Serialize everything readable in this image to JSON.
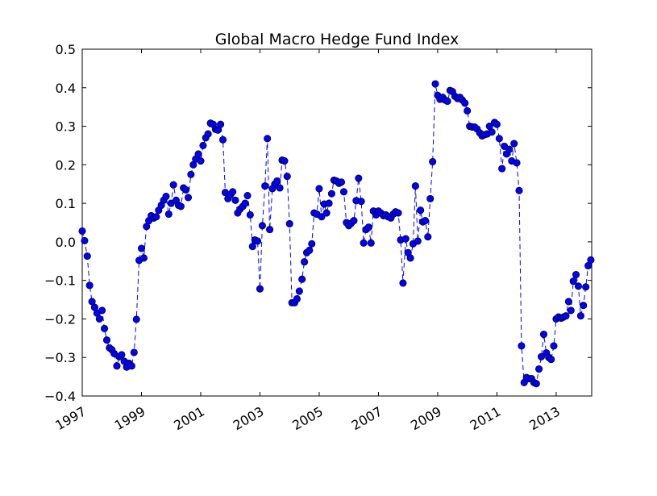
{
  "chart_data": {
    "type": "line",
    "title": "Global Macro Hedge Fund Index",
    "xlabel": "",
    "ylabel": "",
    "xlim": [
      1997.0,
      2014.2
    ],
    "ylim": [
      -0.4,
      0.5
    ],
    "grid": false,
    "legend": "none",
    "x_tick_labels": [
      "1997",
      "1999",
      "2001",
      "2003",
      "2005",
      "2007",
      "2009",
      "2011",
      "2013"
    ],
    "y_tick_labels": [
      "0.5",
      "0.4",
      "0.3",
      "0.2",
      "0.1",
      "0.0",
      "−0.1",
      "−0.2",
      "−0.3",
      "−0.4"
    ],
    "colors": {
      "series": "#0000ff",
      "marker_edge": "#000000"
    },
    "series": [
      {
        "name": "",
        "line_style": "dashed",
        "marker": "circle",
        "x": [
          1997.0,
          1997.08,
          1997.17,
          1997.25,
          1997.33,
          1997.42,
          1997.5,
          1997.58,
          1997.67,
          1997.75,
          1997.83,
          1997.92,
          1998.0,
          1998.08,
          1998.17,
          1998.25,
          1998.33,
          1998.42,
          1998.5,
          1998.58,
          1998.67,
          1998.75,
          1998.83,
          1998.92,
          1999.0,
          1999.08,
          1999.17,
          1999.25,
          1999.33,
          1999.42,
          1999.5,
          1999.58,
          1999.67,
          1999.75,
          1999.83,
          1999.92,
          2000.0,
          2000.08,
          2000.17,
          2000.25,
          2000.33,
          2000.42,
          2000.5,
          2000.58,
          2000.67,
          2000.75,
          2000.83,
          2000.92,
          2001.0,
          2001.08,
          2001.17,
          2001.25,
          2001.33,
          2001.42,
          2001.5,
          2001.58,
          2001.67,
          2001.75,
          2001.83,
          2001.92,
          2002.0,
          2002.08,
          2002.17,
          2002.25,
          2002.33,
          2002.42,
          2002.5,
          2002.58,
          2002.67,
          2002.75,
          2002.83,
          2002.92,
          2003.0,
          2003.08,
          2003.17,
          2003.25,
          2003.33,
          2003.42,
          2003.5,
          2003.58,
          2003.67,
          2003.75,
          2003.83,
          2003.92,
          2004.0,
          2004.08,
          2004.17,
          2004.25,
          2004.33,
          2004.42,
          2004.5,
          2004.58,
          2004.67,
          2004.75,
          2004.83,
          2004.92,
          2005.0,
          2005.08,
          2005.17,
          2005.25,
          2005.33,
          2005.42,
          2005.5,
          2005.58,
          2005.67,
          2005.75,
          2005.83,
          2005.92,
          2006.0,
          2006.08,
          2006.17,
          2006.25,
          2006.33,
          2006.42,
          2006.5,
          2006.58,
          2006.67,
          2006.75,
          2006.83,
          2006.92,
          2007.0,
          2007.08,
          2007.17,
          2007.25,
          2007.33,
          2007.42,
          2007.5,
          2007.58,
          2007.67,
          2007.75,
          2007.83,
          2007.92,
          2008.0,
          2008.08,
          2008.17,
          2008.25,
          2008.33,
          2008.42,
          2008.5,
          2008.58,
          2008.67,
          2008.75,
          2008.83,
          2008.92,
          2009.0,
          2009.08,
          2009.17,
          2009.25,
          2009.33,
          2009.42,
          2009.5,
          2009.58,
          2009.67,
          2009.75,
          2009.83,
          2009.92,
          2010.0,
          2010.08,
          2010.17,
          2010.25,
          2010.33,
          2010.42,
          2010.5,
          2010.58,
          2010.67,
          2010.75,
          2010.83,
          2010.92,
          2011.0,
          2011.08,
          2011.17,
          2011.25,
          2011.33,
          2011.42,
          2011.5,
          2011.58,
          2011.67,
          2011.75,
          2011.83,
          2011.92,
          2012.0,
          2012.08,
          2012.17,
          2012.25,
          2012.33,
          2012.42,
          2012.5,
          2012.58,
          2012.67,
          2012.75,
          2012.83,
          2012.92,
          2013.0,
          2013.08,
          2013.17,
          2013.25,
          2013.33,
          2013.42,
          2013.5,
          2013.58,
          2013.67,
          2013.75,
          2013.83,
          2013.92,
          2014.0,
          2014.08,
          2014.17
        ],
        "y": [
          0.028,
          0.003,
          -0.037,
          -0.113,
          -0.155,
          -0.17,
          -0.185,
          -0.2,
          -0.178,
          -0.225,
          -0.255,
          -0.275,
          -0.28,
          -0.29,
          -0.322,
          -0.298,
          -0.293,
          -0.31,
          -0.325,
          -0.315,
          -0.322,
          -0.287,
          -0.201,
          -0.048,
          -0.017,
          -0.042,
          0.04,
          0.055,
          0.068,
          0.062,
          0.065,
          0.082,
          0.095,
          0.108,
          0.118,
          0.072,
          0.1,
          0.148,
          0.108,
          0.095,
          0.092,
          0.14,
          0.135,
          0.115,
          0.175,
          0.2,
          0.215,
          0.228,
          0.21,
          0.25,
          0.27,
          0.28,
          0.308,
          0.305,
          0.292,
          0.29,
          0.305,
          0.265,
          0.128,
          0.112,
          0.122,
          0.13,
          0.108,
          0.075,
          0.085,
          0.092,
          0.1,
          0.12,
          0.07,
          -0.012,
          0.005,
          0.002,
          -0.122,
          0.042,
          0.145,
          0.268,
          0.032,
          0.138,
          0.15,
          0.158,
          0.14,
          0.212,
          0.21,
          0.17,
          0.047,
          -0.158,
          -0.158,
          -0.148,
          -0.128,
          -0.097,
          -0.052,
          -0.028,
          -0.022,
          -0.005,
          0.075,
          0.072,
          0.138,
          0.065,
          0.098,
          0.075,
          0.1,
          0.125,
          0.16,
          0.158,
          0.152,
          0.155,
          0.13,
          0.05,
          0.042,
          0.048,
          0.055,
          0.107,
          0.165,
          0.105,
          -0.003,
          0.032,
          0.038,
          -0.003,
          0.08,
          0.07,
          0.08,
          0.075,
          0.068,
          0.07,
          0.065,
          0.062,
          0.072,
          0.078,
          0.075,
          0.005,
          -0.107,
          0.008,
          -0.028,
          -0.042,
          -0.005,
          0.145,
          0.002,
          0.082,
          0.052,
          0.055,
          0.013,
          0.112,
          0.208,
          0.41,
          0.38,
          0.37,
          0.375,
          0.368,
          0.365,
          0.393,
          0.39,
          0.378,
          0.372,
          0.375,
          0.368,
          0.36,
          0.34,
          0.3,
          0.298,
          0.298,
          0.293,
          0.283,
          0.275,
          0.278,
          0.28,
          0.3,
          0.285,
          0.31,
          0.305,
          0.268,
          0.19,
          0.248,
          0.228,
          0.24,
          0.21,
          0.255,
          0.205,
          0.133,
          -0.27,
          -0.365,
          -0.352,
          -0.355,
          -0.355,
          -0.365,
          -0.368,
          -0.33,
          -0.298,
          -0.24,
          -0.288,
          -0.3,
          -0.305,
          -0.27,
          -0.2,
          -0.195,
          -0.198,
          -0.195,
          -0.192,
          -0.155,
          -0.178,
          -0.102,
          -0.085,
          -0.115,
          -0.192,
          -0.165,
          -0.117,
          -0.062,
          -0.047
        ]
      }
    ]
  }
}
